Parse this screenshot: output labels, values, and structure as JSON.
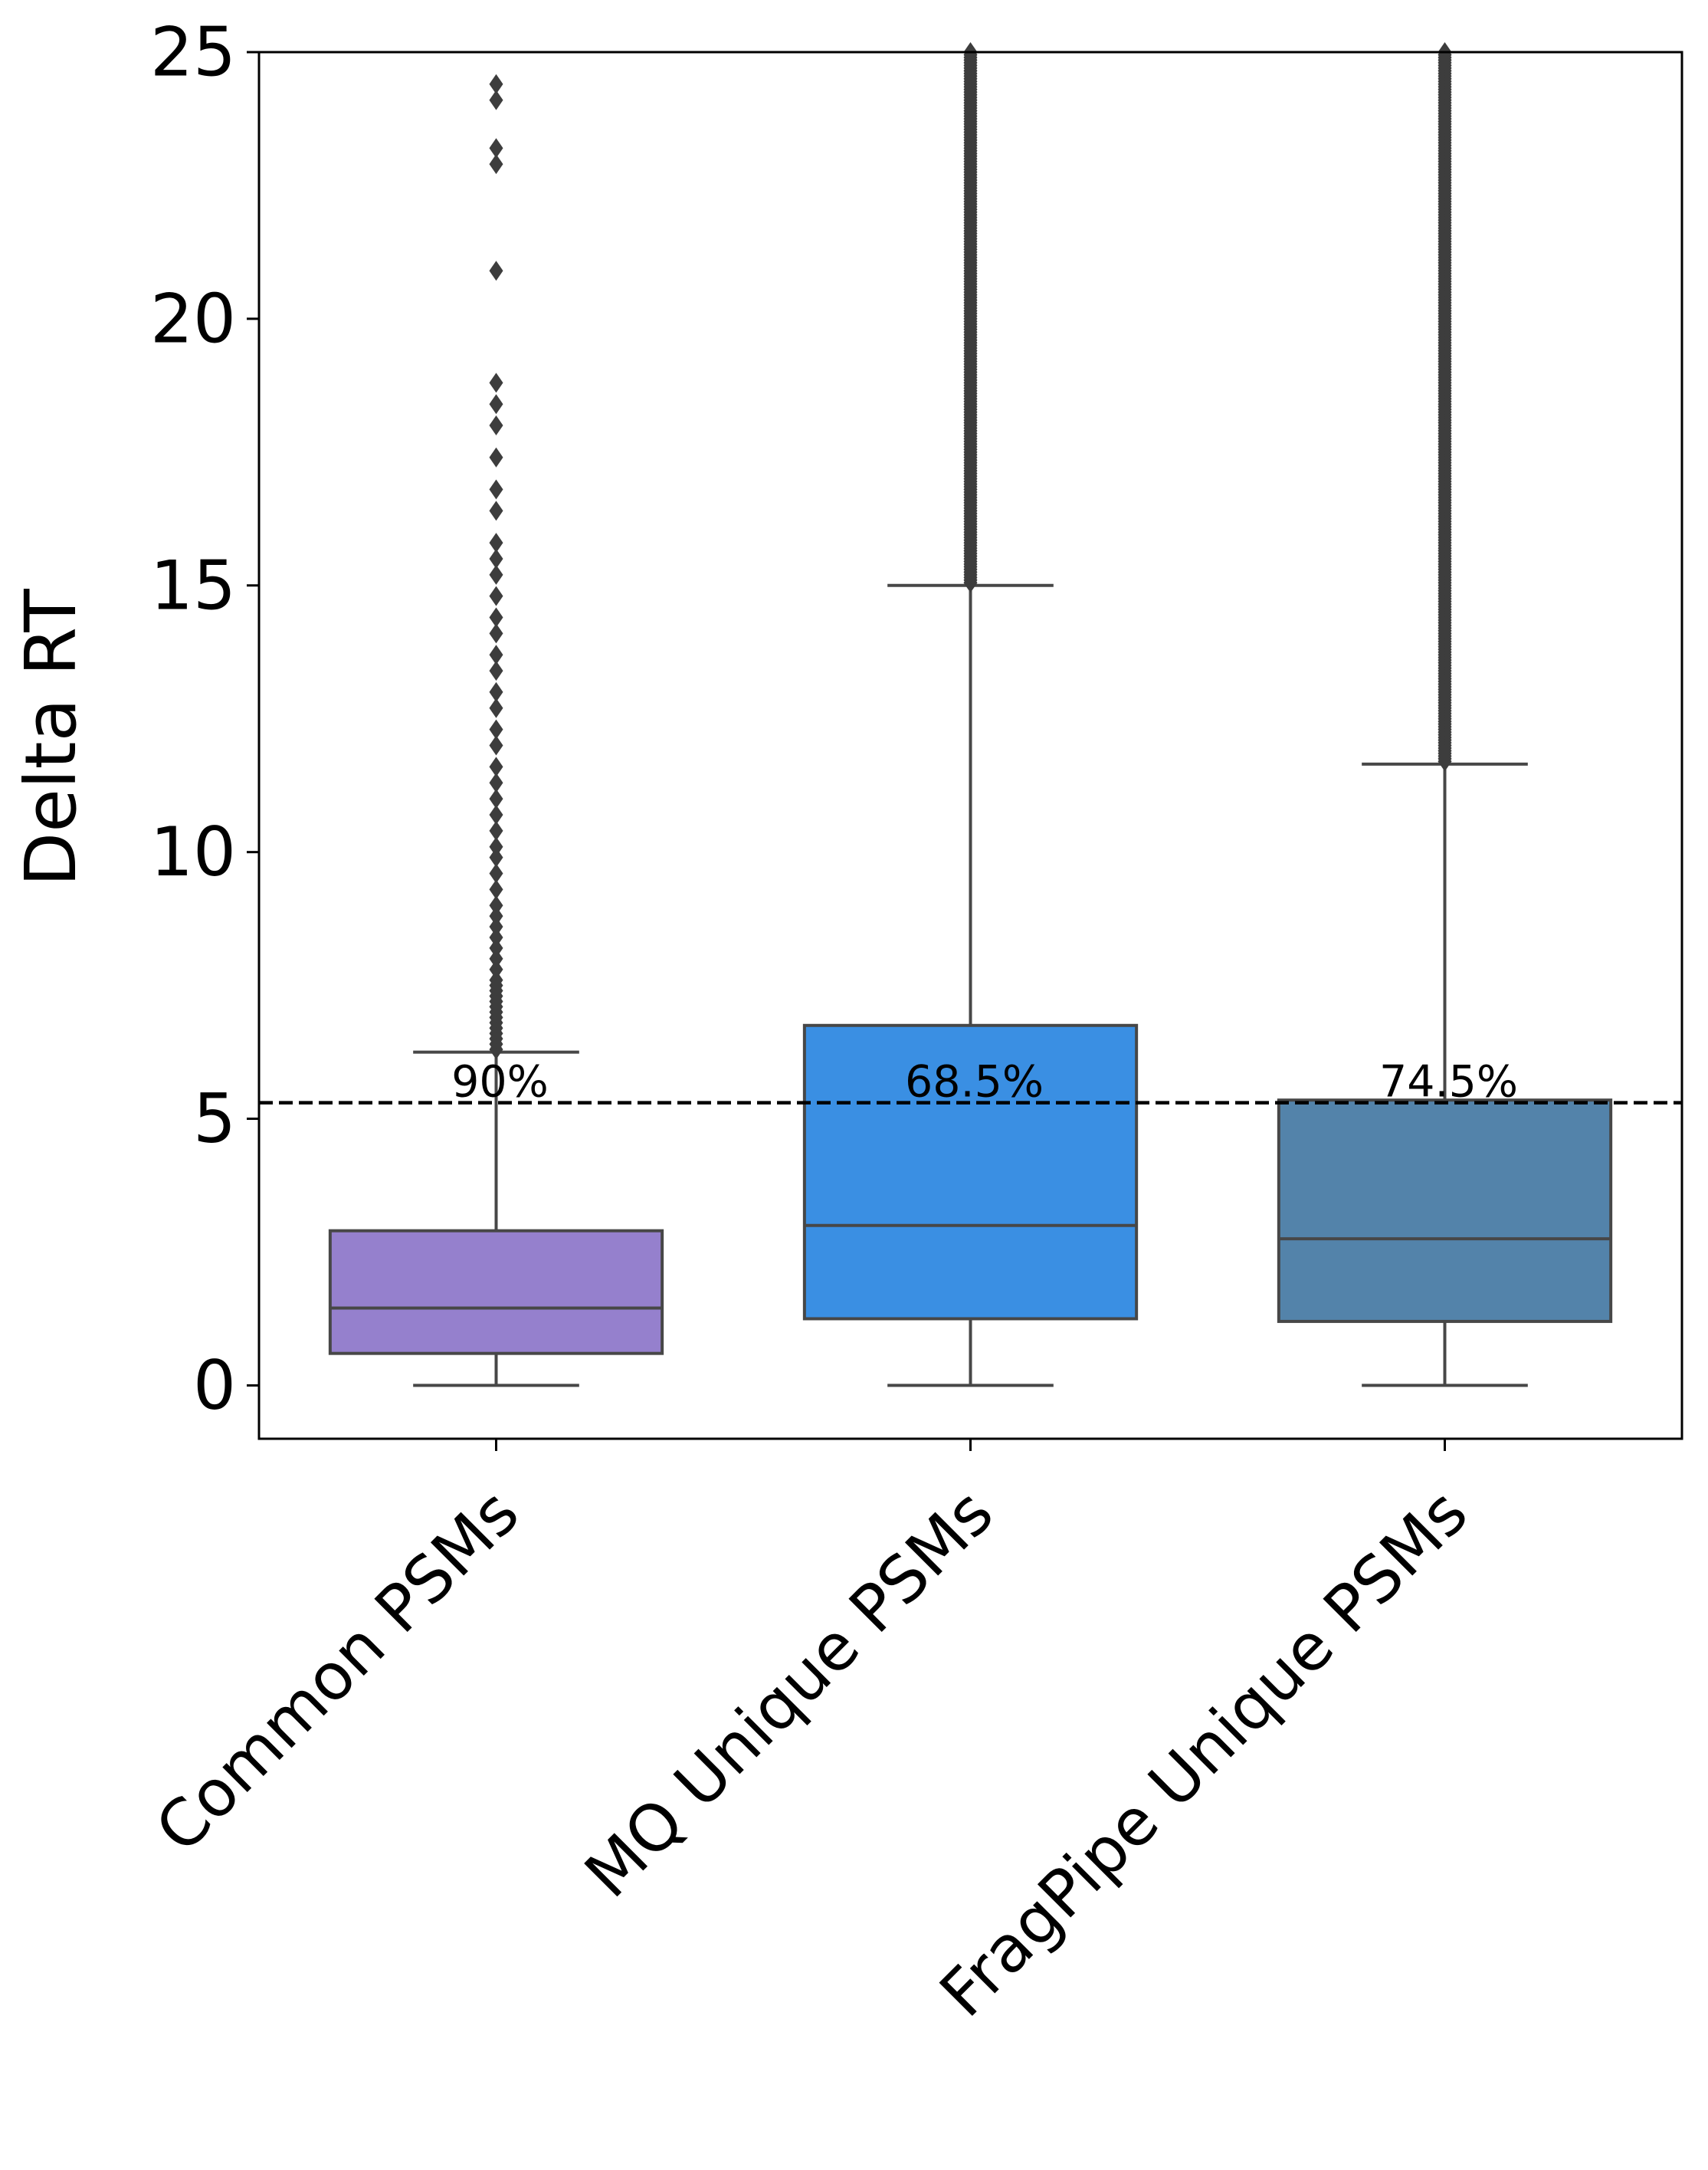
{
  "chart_data": {
    "type": "boxplot",
    "title": "",
    "xlabel": "",
    "ylabel": "Delta RT",
    "ylim": [
      -1,
      25
    ],
    "yticks": [
      0,
      5,
      10,
      15,
      20,
      25
    ],
    "grid": false,
    "legend": "none",
    "reference_line": {
      "y": 5.3,
      "style": "dashed",
      "color": "#000000"
    },
    "categories": [
      "Common PSMs",
      "MQ Unique PSMs",
      "FragPipe Unique PSMs"
    ],
    "boxes": [
      {
        "category": "Common PSMs",
        "color": "#9580CD",
        "whisker_low": 0,
        "q1": 0.6,
        "median": 1.45,
        "q3": 2.9,
        "whisker_high": 6.25,
        "annotation": "90%",
        "outliers": [
          6.3,
          6.4,
          6.5,
          6.6,
          6.7,
          6.8,
          6.9,
          7.0,
          7.1,
          7.2,
          7.3,
          7.4,
          7.5,
          7.6,
          7.8,
          8.0,
          8.2,
          8.4,
          8.6,
          8.8,
          9.0,
          9.3,
          9.6,
          9.9,
          10.1,
          10.4,
          10.7,
          11.0,
          11.3,
          11.6,
          12.0,
          12.3,
          12.7,
          13.0,
          13.4,
          13.7,
          14.1,
          14.4,
          14.8,
          15.2,
          15.5,
          15.8,
          16.4,
          16.8,
          17.4,
          18.0,
          18.4,
          18.8,
          20.9,
          22.9,
          23.2,
          24.1,
          24.4
        ]
      },
      {
        "category": "MQ Unique PSMs",
        "color": "#3A8FE3",
        "whisker_low": 0,
        "q1": 1.25,
        "median": 3.0,
        "q3": 6.75,
        "whisker_high": 15.0,
        "annotation": "68.5%",
        "outlier_range": [
          15.05,
          25
        ]
      },
      {
        "category": "FragPipe Unique PSMs",
        "color": "#5383AA",
        "whisker_low": 0,
        "q1": 1.2,
        "median": 2.75,
        "q3": 5.35,
        "whisker_high": 11.65,
        "annotation": "74.5%",
        "outlier_range": [
          11.7,
          25
        ]
      }
    ]
  }
}
